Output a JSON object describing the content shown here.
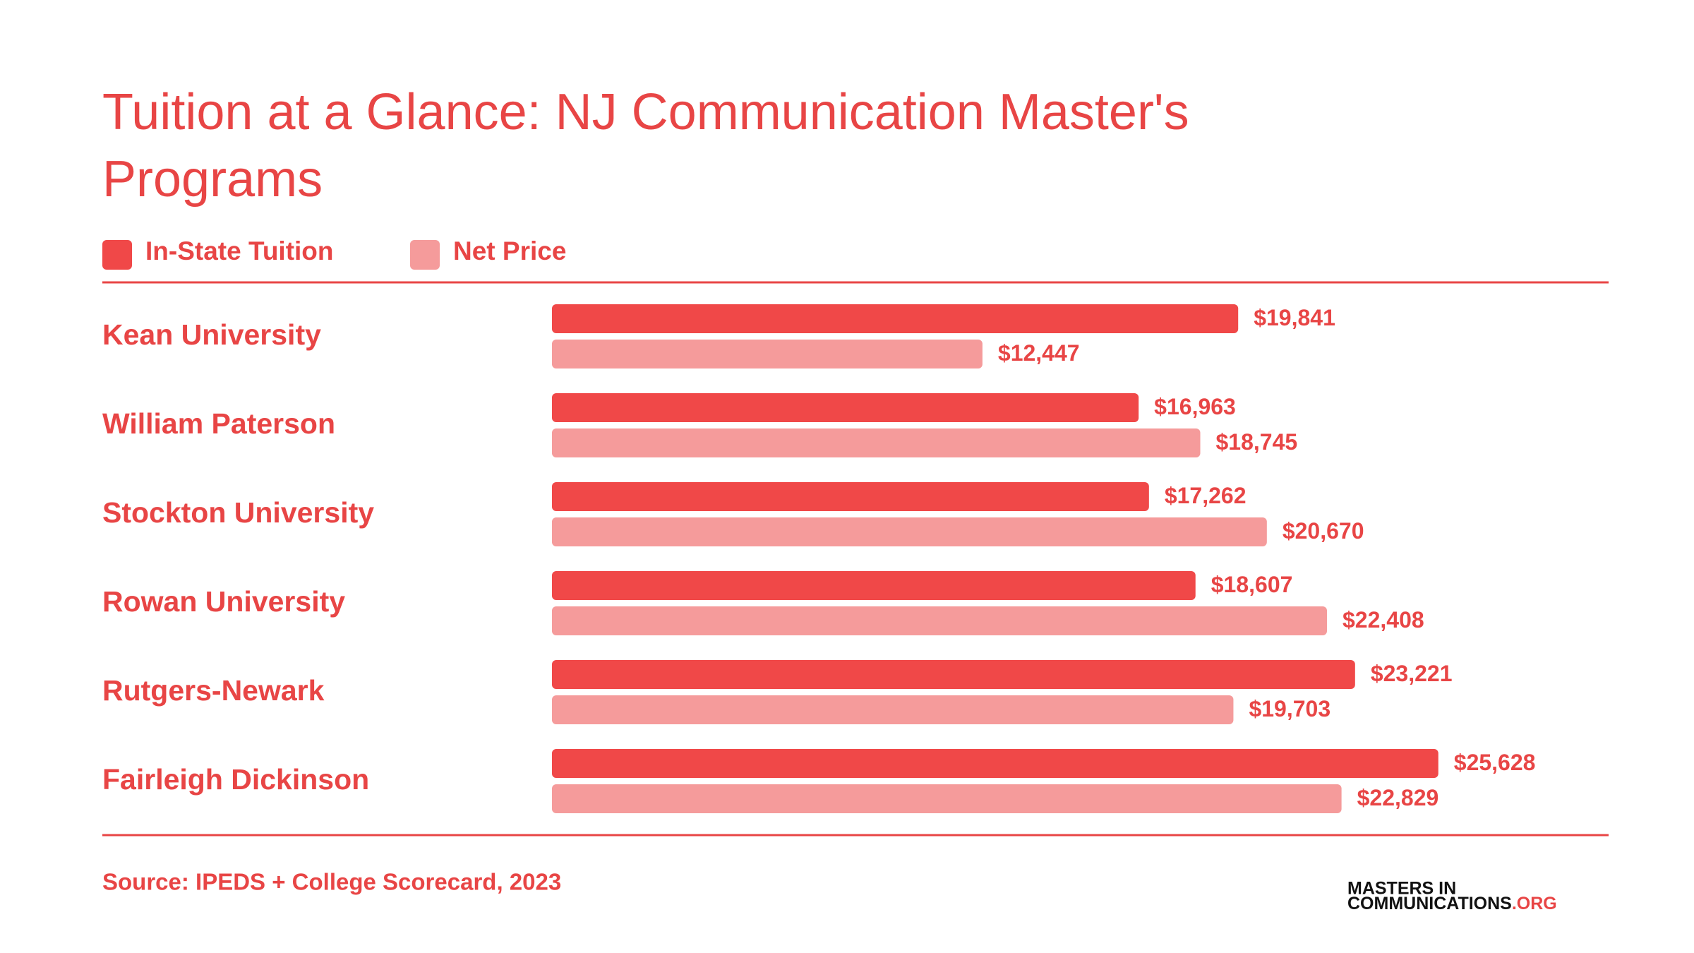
{
  "chart_data": {
    "type": "bar",
    "orientation": "horizontal",
    "title": "Tuition at a Glance: NJ Communication Master's Programs",
    "categories": [
      "Kean University",
      "William Paterson",
      "Stockton University",
      "Rowan University",
      "Rutgers-Newark",
      "Fairleigh Dickinson"
    ],
    "series": [
      {
        "name": "In-State Tuition",
        "color": "#f04848",
        "values": [
          19841,
          16963,
          17262,
          18607,
          23221,
          25628
        ],
        "value_labels": [
          "$19,841",
          "$16,963",
          "$17,262",
          "$18,607",
          "$23,221",
          "$25,628"
        ]
      },
      {
        "name": "Net Price",
        "color": "#f59b9b",
        "values": [
          12447,
          18745,
          20670,
          22408,
          19703,
          22829
        ],
        "value_labels": [
          "$12,447",
          "$18,745",
          "$20,670",
          "$22,408",
          "$19,703",
          "$22,829"
        ]
      }
    ],
    "source": "Source: IPEDS + College Scorecard, 2023",
    "logo": {
      "line1": "MASTERS IN",
      "line2": "COMMUNICATIONS",
      "suffix": ".ORG"
    }
  }
}
